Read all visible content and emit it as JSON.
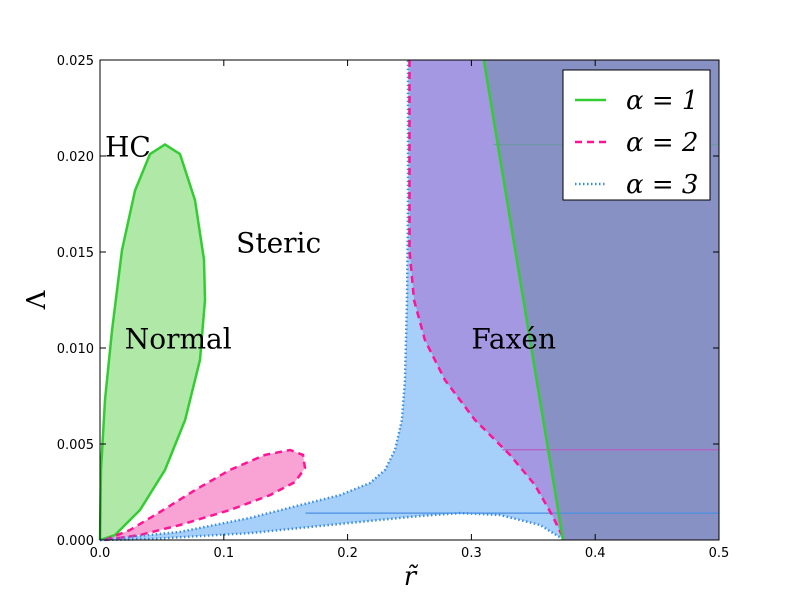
{
  "chart_data": {
    "type": "area",
    "xlabel": "r̃",
    "ylabel": "Λ",
    "xlim": [
      0,
      0.5
    ],
    "ylim": [
      0,
      0.025
    ],
    "xticks": [
      "0.0",
      "0.1",
      "0.2",
      "0.3",
      "0.4",
      "0.5"
    ],
    "yticks": [
      "0.000",
      "0.005",
      "0.010",
      "0.015",
      "0.020",
      "0.025"
    ],
    "legend": {
      "placement": "top-right",
      "entries": [
        {
          "label": "α = 1",
          "style": "solid",
          "color": "#33cc33"
        },
        {
          "label": "α = 2",
          "style": "dashed",
          "color": "#ff1493"
        },
        {
          "label": "α = 3",
          "style": "dotted",
          "color": "#3a8ee6"
        }
      ]
    },
    "region_labels": [
      {
        "text": "HC",
        "x": 0.004,
        "y": 0.0205
      },
      {
        "text": "Steric",
        "x": 0.11,
        "y": 0.0155
      },
      {
        "text": "Normal",
        "x": 0.02,
        "y": 0.0105
      },
      {
        "text": "Faxén",
        "x": 0.3,
        "y": 0.0105
      }
    ],
    "series": [
      {
        "name": "alpha1_normal_boundary",
        "color": "#33cc33",
        "fill": "#b0e8a8",
        "style": "solid",
        "x": [
          0,
          0.0008,
          0.004,
          0.0097,
          0.0178,
          0.0283,
          0.0404,
          0.0525,
          0.0646,
          0.0767,
          0.084,
          0.0848,
          0.0808,
          0.0687,
          0.0525,
          0.0323,
          0.0121,
          0
        ],
        "y": [
          0,
          0.00365,
          0.0073,
          0.0109,
          0.0151,
          0.0182,
          0.0201,
          0.0206,
          0.0201,
          0.0177,
          0.0146,
          0.0125,
          0.00938,
          0.00625,
          0.00365,
          0.00156,
          0.00026,
          0
        ]
      },
      {
        "name": "alpha2_normal_boundary",
        "color": "#ff1493",
        "fill": "#f9a3d4",
        "style": "dashed",
        "x": [
          0.004,
          0.0242,
          0.0485,
          0.0767,
          0.105,
          0.1333,
          0.1535,
          0.164,
          0.1656,
          0.1575,
          0.1373,
          0.105,
          0.0646,
          0.0323,
          0.004
        ],
        "y": [
          0,
          0.00052,
          0.00146,
          0.0026,
          0.00365,
          0.00443,
          0.00469,
          0.00443,
          0.00375,
          0.00302,
          0.00234,
          0.00156,
          0.00078,
          0.00026,
          0
        ]
      },
      {
        "name": "alpha3_upper_boundary",
        "color": "#3a8ee6",
        "style": "dotted",
        "x": [
          0,
          0.0646,
          0.1212,
          0.1616,
          0.1939,
          0.2181,
          0.2302,
          0.2383,
          0.2439,
          0.2464,
          0.248,
          0.2488,
          0.2488
        ],
        "y": [
          0,
          0.00042,
          0.00115,
          0.00182,
          0.00234,
          0.00297,
          0.00365,
          0.00469,
          0.00625,
          0.00833,
          0.0125,
          0.0177,
          0.025
        ]
      },
      {
        "name": "alpha3_lower_boundary",
        "color": "#3a8ee6",
        "style": "dotted",
        "x": [
          0,
          0.0404,
          0.1212,
          0.2019,
          0.2585,
          0.2908,
          0.3231,
          0.3554,
          0.375
        ],
        "y": [
          0,
          5e-05,
          0.00036,
          0.00089,
          0.00125,
          0.0014,
          0.0013,
          0.00078,
          0
        ]
      },
      {
        "name": "alpha2_faxen_boundary",
        "color": "#ff1493",
        "style": "dashed",
        "x": [
          0.25,
          0.25,
          0.2536,
          0.2625,
          0.2787,
          0.3029,
          0.3312,
          0.3514,
          0.3651,
          0.375
        ],
        "y": [
          0.025,
          0.0151,
          0.0125,
          0.0104,
          0.00833,
          0.00625,
          0.00443,
          0.00286,
          0.0013,
          0
        ]
      },
      {
        "name": "alpha1_faxen_boundary",
        "color": "#33cc33",
        "style": "solid",
        "x": [
          0.31,
          0.374
        ],
        "y": [
          0.025,
          0
        ]
      }
    ],
    "fills": {
      "alpha3": "#a6cffa",
      "alpha2_faxen": "#a598e3",
      "alpha1_faxen": "#8891c4"
    },
    "hlines": [
      {
        "y": 0.0206,
        "x0": 0.318,
        "x1": 0.5,
        "color": "#6f97a8"
      },
      {
        "y": 0.0047,
        "x0": 0.325,
        "x1": 0.5,
        "color": "#b35fc4"
      },
      {
        "y": 0.0014,
        "x0": 0.166,
        "x1": 0.5,
        "color": "#4a90e2"
      }
    ]
  }
}
